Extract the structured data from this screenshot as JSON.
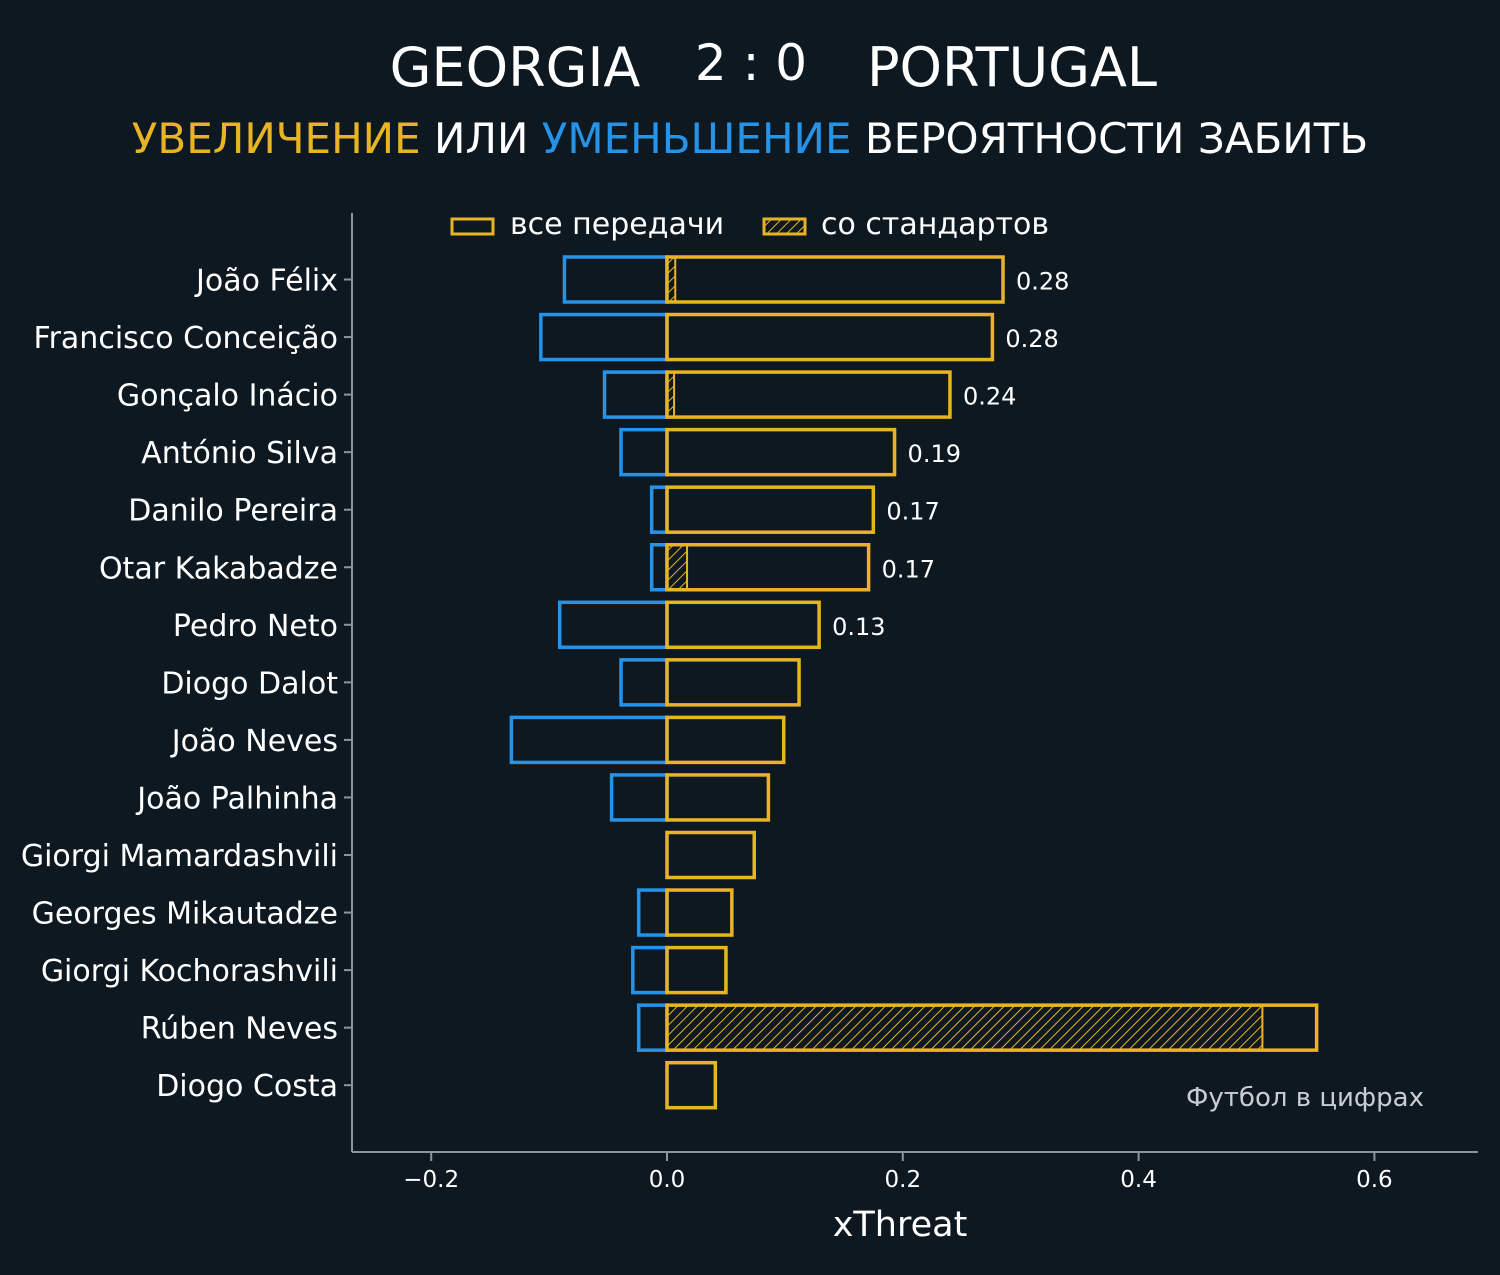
{
  "header": {
    "home_team": "GEORGIA",
    "score": "2 : 0",
    "away_team": "PORTUGAL",
    "subtitle_increase": "УВЕЛИЧЕНИЕ",
    "subtitle_or": "ИЛИ",
    "subtitle_decrease": "УМЕНЬШЕНИЕ",
    "subtitle_rest": "ВЕРОЯТНОСТИ ЗАБИТЬ"
  },
  "colors": {
    "background": "#0e1821",
    "positive": "#e8b423",
    "negative": "#2593e8",
    "text": "#ffffff",
    "axis": "#8a969e",
    "credit": "#c8cdd1"
  },
  "credit": "Футбол в цифрах",
  "chart_data": {
    "type": "bar",
    "orientation": "horizontal",
    "xlabel": "xThreat",
    "xlim": [
      -0.267,
      0.69
    ],
    "xticks": [
      -0.2,
      0.0,
      0.2,
      0.4,
      0.6
    ],
    "xtick_labels": [
      "−0.2",
      "0.0",
      "0.2",
      "0.4",
      "0.6"
    ],
    "legend": {
      "position": "top",
      "entries": [
        "все передачи",
        "со стандартов"
      ]
    },
    "categories": [
      "João Félix",
      "Francisco Conceição",
      "Gonçalo Inácio",
      "António Silva",
      "Danilo Pereira",
      "Otar Kakabadze",
      "Pedro Neto",
      "Diogo Dalot",
      "João Neves",
      "João Palhinha",
      "Giorgi Mamardashvili",
      "Georges Mikautadze",
      "Giorgi Kochorashvili",
      "Rúben Neves",
      "Diogo Costa"
    ],
    "series": [
      {
        "name": "все передачи (+)",
        "values": [
          0.285,
          0.276,
          0.24,
          0.193,
          0.175,
          0.171,
          0.129,
          0.112,
          0.099,
          0.086,
          0.074,
          0.055,
          0.05,
          0.551,
          0.041
        ]
      },
      {
        "name": "все передачи (−)",
        "values": [
          -0.087,
          -0.107,
          -0.053,
          -0.039,
          -0.013,
          -0.013,
          -0.091,
          -0.039,
          -0.132,
          -0.047,
          0.0,
          -0.024,
          -0.029,
          -0.024,
          0.0
        ]
      },
      {
        "name": "со стандартов",
        "values": [
          0.007,
          0.0,
          0.006,
          0.0,
          0.0,
          0.017,
          0.0,
          0.0,
          0.0,
          0.0,
          0.0,
          0.0,
          0.0,
          0.505,
          0.0
        ]
      }
    ],
    "value_labels": [
      "0.28",
      "0.28",
      "0.24",
      "0.19",
      "0.17",
      "0.17",
      "0.13",
      "",
      "",
      "",
      "",
      "",
      "",
      "",
      ""
    ]
  }
}
